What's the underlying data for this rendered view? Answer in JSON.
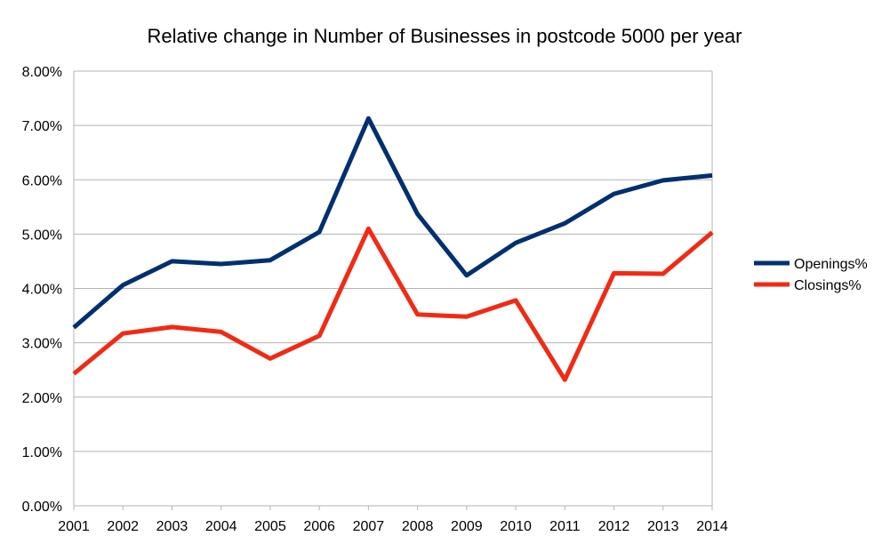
{
  "chart_data": {
    "type": "line",
    "title": "Relative change in Number of Businesses in postcode 5000 per year",
    "xlabel": "",
    "ylabel": "",
    "categories": [
      "2001",
      "2002",
      "2003",
      "2004",
      "2005",
      "2006",
      "2007",
      "2008",
      "2009",
      "2010",
      "2011",
      "2012",
      "2013",
      "2014"
    ],
    "ylim": [
      0,
      0.08
    ],
    "yticks": [
      0,
      0.01,
      0.02,
      0.03,
      0.04,
      0.05,
      0.06,
      0.07,
      0.08
    ],
    "ytick_labels": [
      "0.00%",
      "1.00%",
      "2.00%",
      "3.00%",
      "4.00%",
      "5.00%",
      "6.00%",
      "7.00%",
      "8.00%"
    ],
    "grid": true,
    "legend_position": "right",
    "series": [
      {
        "name": "Openings%",
        "color": "#003070",
        "values": [
          0.0328,
          0.0406,
          0.045,
          0.0445,
          0.0452,
          0.0504,
          0.0713,
          0.0537,
          0.0424,
          0.0484,
          0.052,
          0.0574,
          0.0599,
          0.0608
        ]
      },
      {
        "name": "Closings%",
        "color": "#f22a14",
        "values": [
          0.0243,
          0.0317,
          0.0329,
          0.032,
          0.0271,
          0.0313,
          0.051,
          0.0352,
          0.0348,
          0.0378,
          0.0232,
          0.0428,
          0.0427,
          0.0503
        ]
      }
    ]
  }
}
